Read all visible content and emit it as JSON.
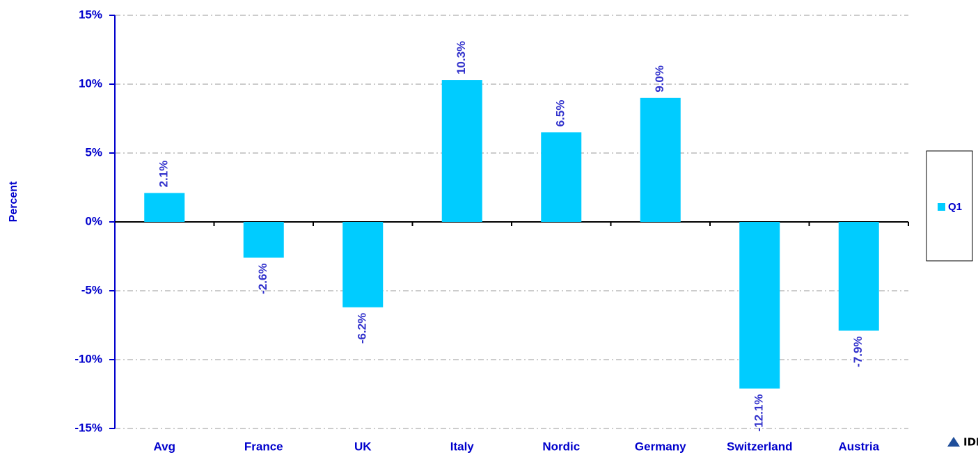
{
  "chart_data": {
    "type": "bar",
    "y_label": "Percent",
    "categories": [
      "Avg",
      "France",
      "UK",
      "Italy",
      "Nordic",
      "Germany",
      "Switzerland",
      "Austria"
    ],
    "series": [
      {
        "name": "Q1",
        "color": "#00ccff",
        "values": [
          2.1,
          -2.6,
          -6.2,
          10.3,
          6.5,
          9.0,
          -12.1,
          -7.9
        ],
        "value_labels": [
          "2.1%",
          "-2.6%",
          "-6.2%",
          "10.3%",
          "6.5%",
          "9.0%",
          "-12.1%",
          "-7.9%"
        ]
      }
    ],
    "ylim": [
      -15,
      15
    ],
    "yticks": [
      {
        "value": -15,
        "label": "-15%"
      },
      {
        "value": -10,
        "label": "-10%"
      },
      {
        "value": -5,
        "label": "-5%"
      },
      {
        "value": 0,
        "label": "0%"
      },
      {
        "value": 5,
        "label": "5%"
      },
      {
        "value": 10,
        "label": "10%"
      },
      {
        "value": 15,
        "label": "15%"
      }
    ],
    "grid": true,
    "legend": "right",
    "logo": "IDEA"
  }
}
